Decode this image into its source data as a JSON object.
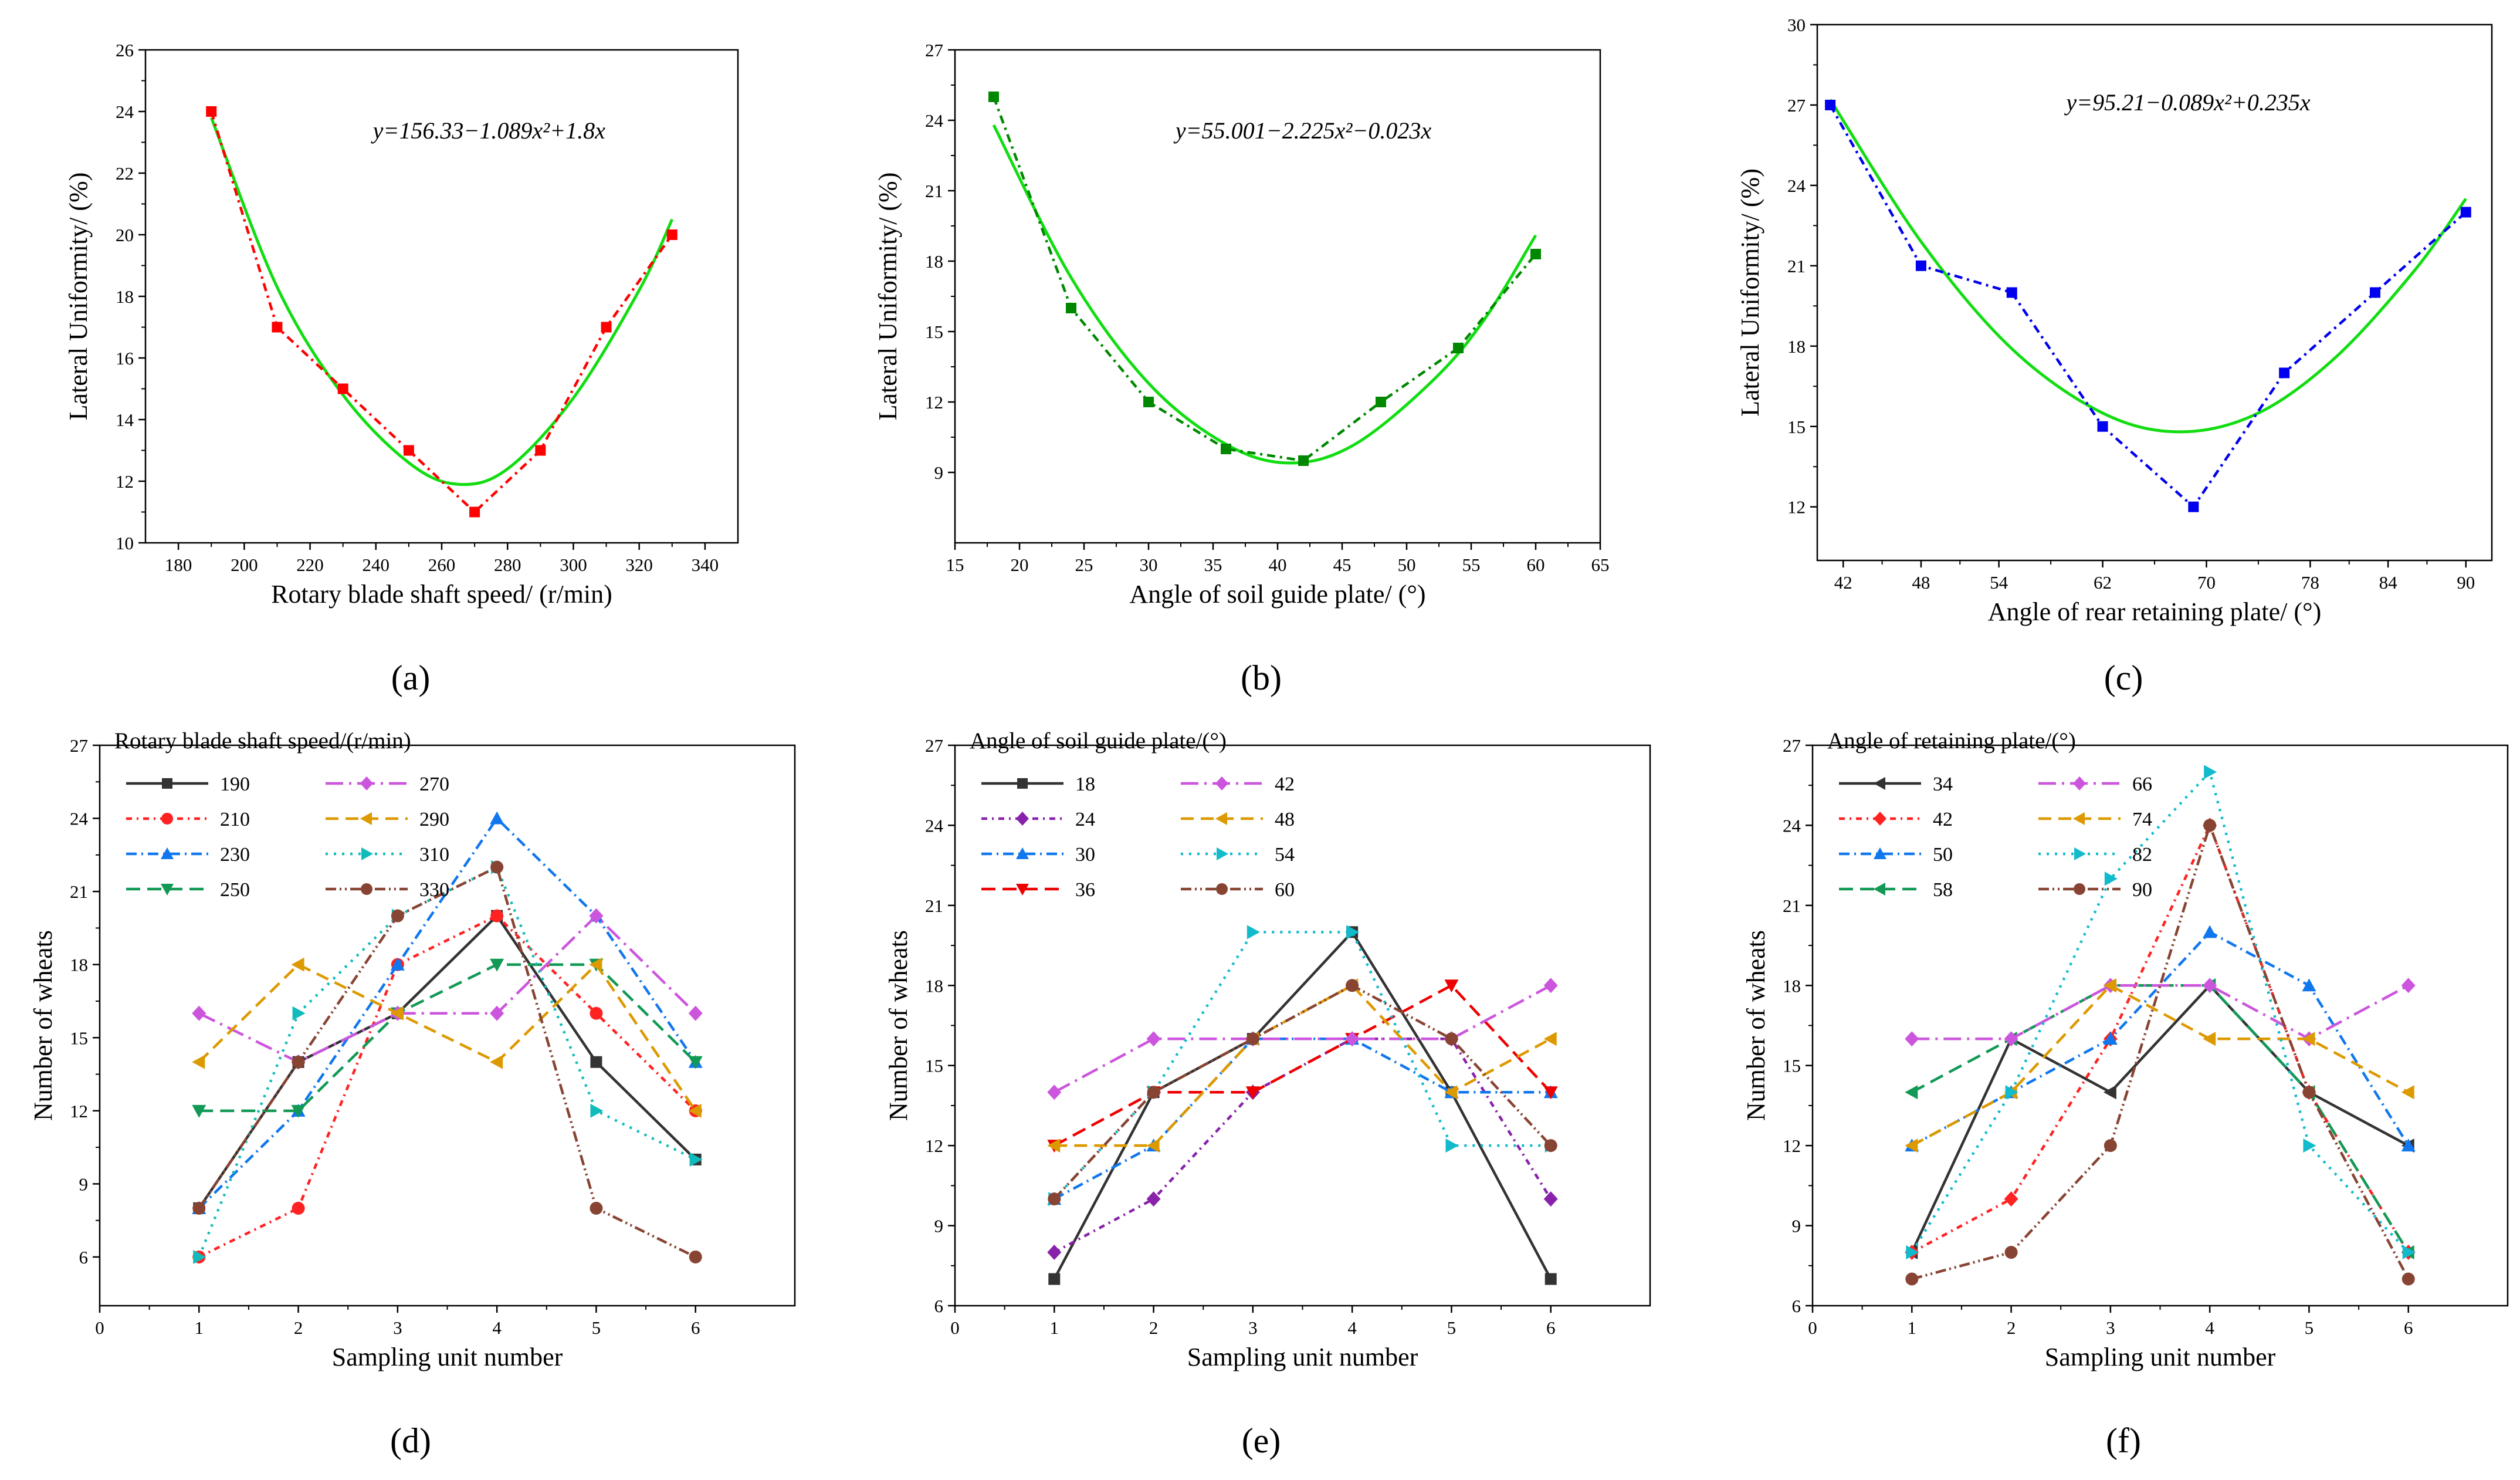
{
  "figure": {
    "panel_labels": [
      "(a)",
      "(b)",
      "(c)",
      "(d)",
      "(e)",
      "(f)"
    ]
  },
  "chart_data": [
    {
      "id": "a",
      "type": "line",
      "panel_label": "(a)",
      "xlabel": "Rotary blade shaft speed/ (r/min)",
      "ylabel": "Lateral Uniformity/ (%)",
      "xlim": [
        170,
        350
      ],
      "ylim": [
        10,
        26
      ],
      "xticks": [
        180,
        200,
        220,
        240,
        260,
        280,
        300,
        320,
        340
      ],
      "yticks": [
        10,
        12,
        14,
        16,
        18,
        20,
        22,
        24,
        26
      ],
      "equation": "y=156.33−1.089x²+1.8x",
      "measured": {
        "x": [
          190,
          210,
          230,
          250,
          270,
          290,
          310,
          330
        ],
        "y": [
          24,
          17,
          15,
          13,
          11,
          13,
          17,
          20
        ],
        "color": "#ff0000"
      },
      "fit": {
        "x": [
          190,
          210,
          230,
          250,
          265,
          280,
          300,
          320,
          330
        ],
        "y": [
          23.8,
          18.3,
          14.8,
          12.6,
          11.9,
          12.4,
          14.7,
          18.2,
          20.5
        ],
        "color": "#11dd11"
      }
    },
    {
      "id": "b",
      "type": "line",
      "panel_label": "(b)",
      "xlabel": "Angle of soil guide plate/ (°)",
      "ylabel": "Lateral Uniformity/ (%)",
      "xlim": [
        15,
        65
      ],
      "ylim": [
        6,
        27
      ],
      "xticks": [
        15,
        20,
        25,
        30,
        35,
        40,
        45,
        50,
        55,
        60,
        65
      ],
      "yticks": [
        9,
        12,
        15,
        18,
        21,
        24,
        27
      ],
      "equation": "y=55.001−2.225x²−0.023x",
      "measured": {
        "x": [
          18,
          24,
          30,
          36,
          42,
          48,
          54,
          60
        ],
        "y": [
          25,
          16,
          12,
          10,
          9.5,
          12,
          14.3,
          18.3
        ],
        "color": "#008800"
      },
      "fit": {
        "x": [
          18,
          24,
          30,
          36,
          41,
          46,
          52,
          56,
          60
        ],
        "y": [
          23.8,
          17.3,
          12.8,
          10.2,
          9.4,
          10.2,
          12.9,
          15.5,
          19.1
        ],
        "color": "#11dd11"
      }
    },
    {
      "id": "c",
      "type": "line",
      "panel_label": "(c)",
      "xlabel": "Angle of rear retaining plate/ (°)",
      "ylabel": "Lateral Uniformity/ (%)",
      "xlim": [
        40,
        92
      ],
      "ylim": [
        10,
        30
      ],
      "xticks": [
        42,
        48,
        54,
        62,
        70,
        78,
        84,
        90
      ],
      "yticks": [
        12,
        15,
        18,
        21,
        24,
        27,
        30
      ],
      "equation": "y=95.21−0.089x²+0.235x",
      "measured": {
        "x": [
          41,
          48,
          55,
          62,
          69,
          76,
          83,
          90
        ],
        "y": [
          27,
          21,
          20,
          15,
          12,
          17,
          20,
          23
        ],
        "color": "#0000ee"
      },
      "fit": {
        "x": [
          41,
          48,
          55,
          62,
          68,
          74,
          80,
          86,
          90
        ],
        "y": [
          27.2,
          21.9,
          17.9,
          15.5,
          14.8,
          15.5,
          17.6,
          20.8,
          23.5
        ],
        "color": "#11dd11"
      }
    },
    {
      "id": "d",
      "type": "line",
      "panel_label": "(d)",
      "xlabel": "Sampling unit number",
      "ylabel": "Number of wheats",
      "legend_title": "Rotary blade shaft speed/(r/min)",
      "xlim": [
        0,
        7
      ],
      "ylim": [
        4,
        27
      ],
      "xticks": [
        0,
        1,
        2,
        3,
        4,
        5,
        6
      ],
      "yticks": [
        6,
        9,
        12,
        15,
        18,
        21,
        24,
        27
      ],
      "x": [
        1,
        2,
        3,
        4,
        5,
        6
      ],
      "series": [
        {
          "name": "190",
          "values": [
            8,
            14,
            16,
            20,
            14,
            10
          ],
          "color": "#333333"
        },
        {
          "name": "210",
          "values": [
            6,
            8,
            18,
            20,
            16,
            12
          ],
          "color": "#ff2222"
        },
        {
          "name": "230",
          "values": [
            8,
            12,
            18,
            24,
            20,
            14
          ],
          "color": "#1177ee"
        },
        {
          "name": "250",
          "values": [
            12,
            12,
            16,
            18,
            18,
            14
          ],
          "color": "#119955"
        },
        {
          "name": "270",
          "values": [
            16,
            14,
            16,
            16,
            20,
            16
          ],
          "color": "#cc55dd"
        },
        {
          "name": "290",
          "values": [
            14,
            18,
            16,
            14,
            18,
            12
          ],
          "color": "#dd9900"
        },
        {
          "name": "310",
          "values": [
            6,
            16,
            20,
            22,
            12,
            10
          ],
          "color": "#11bbbb"
        },
        {
          "name": "330",
          "values": [
            8,
            14,
            20,
            22,
            8,
            6
          ],
          "color": "#884433"
        }
      ]
    },
    {
      "id": "e",
      "type": "line",
      "panel_label": "(e)",
      "xlabel": "Sampling unit number",
      "ylabel": "Number of wheats",
      "legend_title": "Angle of soil guide plate/(°)",
      "xlim": [
        0,
        7
      ],
      "ylim": [
        6,
        27
      ],
      "xticks": [
        0,
        1,
        2,
        3,
        4,
        5,
        6
      ],
      "yticks": [
        6,
        9,
        12,
        15,
        18,
        21,
        24,
        27
      ],
      "x": [
        1,
        2,
        3,
        4,
        5,
        6
      ],
      "series": [
        {
          "name": "18",
          "values": [
            7,
            14,
            16,
            20,
            14,
            7
          ],
          "color": "#333333"
        },
        {
          "name": "24",
          "values": [
            8,
            10,
            14,
            16,
            16,
            10
          ],
          "color": "#8822aa"
        },
        {
          "name": "30",
          "values": [
            10,
            12,
            16,
            16,
            14,
            14
          ],
          "color": "#1177ee"
        },
        {
          "name": "36",
          "values": [
            12,
            14,
            14,
            16,
            18,
            14
          ],
          "color": "#ee0000"
        },
        {
          "name": "42",
          "values": [
            14,
            16,
            16,
            16,
            16,
            18
          ],
          "color": "#cc55dd"
        },
        {
          "name": "48",
          "values": [
            12,
            12,
            16,
            18,
            14,
            16
          ],
          "color": "#dd9900"
        },
        {
          "name": "54",
          "values": [
            10,
            14,
            20,
            20,
            12,
            12
          ],
          "color": "#11bbcc"
        },
        {
          "name": "60",
          "values": [
            10,
            14,
            16,
            18,
            16,
            12
          ],
          "color": "#884433"
        }
      ]
    },
    {
      "id": "f",
      "type": "line",
      "panel_label": "(f)",
      "xlabel": "Sampling unit number",
      "ylabel": "Number of wheats",
      "legend_title": "Angle of  retaining plate/(°)",
      "xlim": [
        0,
        7
      ],
      "ylim": [
        6,
        27
      ],
      "xticks": [
        0,
        1,
        2,
        3,
        4,
        5,
        6
      ],
      "yticks": [
        6,
        9,
        12,
        15,
        18,
        21,
        24,
        27
      ],
      "x": [
        1,
        2,
        3,
        4,
        5,
        6
      ],
      "series": [
        {
          "name": "34",
          "values": [
            8,
            16,
            14,
            18,
            14,
            12
          ],
          "color": "#333333"
        },
        {
          "name": "42",
          "values": [
            8,
            10,
            16,
            24,
            14,
            8
          ],
          "color": "#ff2222"
        },
        {
          "name": "50",
          "values": [
            12,
            14,
            16,
            20,
            18,
            12
          ],
          "color": "#1177ee"
        },
        {
          "name": "58",
          "values": [
            14,
            16,
            18,
            18,
            14,
            8
          ],
          "color": "#119955"
        },
        {
          "name": "66",
          "values": [
            16,
            16,
            18,
            18,
            16,
            18
          ],
          "color": "#cc55dd"
        },
        {
          "name": "74",
          "values": [
            12,
            14,
            18,
            16,
            16,
            14
          ],
          "color": "#dd9900"
        },
        {
          "name": "82",
          "values": [
            8,
            14,
            22,
            26,
            12,
            8
          ],
          "color": "#11bbcc"
        },
        {
          "name": "90",
          "values": [
            7,
            8,
            12,
            24,
            14,
            7
          ],
          "color": "#884433"
        }
      ]
    }
  ]
}
